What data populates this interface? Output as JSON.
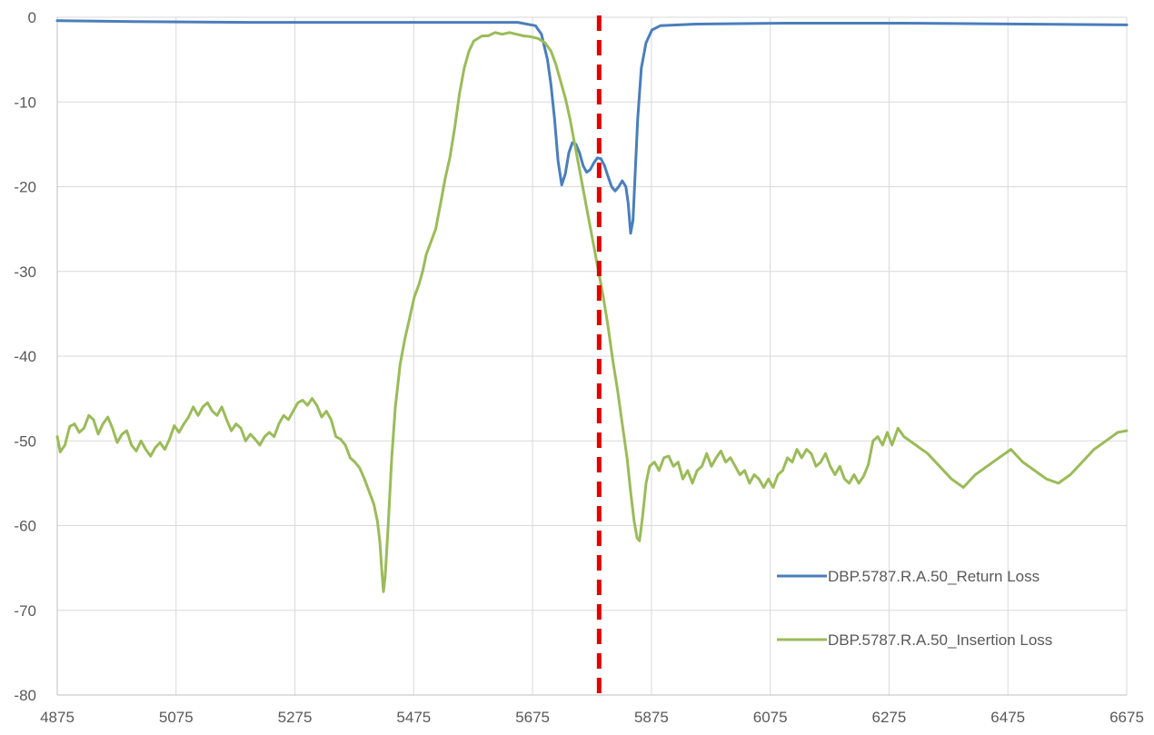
{
  "chart_data": {
    "type": "line",
    "title": "",
    "xlabel": "",
    "ylabel": "",
    "xlim": [
      4875,
      6675
    ],
    "ylim": [
      -80,
      0
    ],
    "x_ticks": [
      4875,
      5075,
      5275,
      5475,
      5675,
      5875,
      6075,
      6275,
      6475,
      6675
    ],
    "y_ticks": [
      0,
      -10,
      -20,
      -30,
      -40,
      -50,
      -60,
      -70,
      -80
    ],
    "grid": true,
    "legend_position": "bottom-right",
    "center_marker": {
      "x": 5787,
      "color": "#e00000",
      "style": "dashed"
    },
    "series": [
      {
        "name": "DBP.5787.R.A.50_Return Loss",
        "color": "#4a7ebb",
        "points": [
          [
            4875,
            -0.4
          ],
          [
            5000,
            -0.5
          ],
          [
            5200,
            -0.6
          ],
          [
            5400,
            -0.6
          ],
          [
            5550,
            -0.6
          ],
          [
            5650,
            -0.6
          ],
          [
            5680,
            -1.0
          ],
          [
            5690,
            -2.0
          ],
          [
            5700,
            -5.0
          ],
          [
            5706,
            -8.0
          ],
          [
            5712,
            -12.0
          ],
          [
            5718,
            -17.0
          ],
          [
            5724,
            -19.8
          ],
          [
            5730,
            -18.5
          ],
          [
            5736,
            -16.0
          ],
          [
            5742,
            -14.8
          ],
          [
            5748,
            -15.0
          ],
          [
            5754,
            -16.0
          ],
          [
            5760,
            -17.5
          ],
          [
            5766,
            -18.3
          ],
          [
            5772,
            -18.0
          ],
          [
            5778,
            -17.2
          ],
          [
            5784,
            -16.6
          ],
          [
            5790,
            -16.7
          ],
          [
            5796,
            -17.5
          ],
          [
            5802,
            -18.8
          ],
          [
            5808,
            -20.0
          ],
          [
            5814,
            -20.5
          ],
          [
            5820,
            -20.0
          ],
          [
            5826,
            -19.3
          ],
          [
            5832,
            -20.0
          ],
          [
            5836,
            -22.0
          ],
          [
            5840,
            -25.5
          ],
          [
            5844,
            -24.0
          ],
          [
            5848,
            -18.0
          ],
          [
            5852,
            -12.0
          ],
          [
            5858,
            -6.0
          ],
          [
            5866,
            -3.0
          ],
          [
            5876,
            -1.5
          ],
          [
            5890,
            -1.0
          ],
          [
            5950,
            -0.8
          ],
          [
            6100,
            -0.7
          ],
          [
            6300,
            -0.7
          ],
          [
            6500,
            -0.8
          ],
          [
            6675,
            -0.9
          ]
        ]
      },
      {
        "name": "DBP.5787.R.A.50_Insertion Loss",
        "color": "#9bbb59",
        "points": [
          [
            4875,
            -49.5
          ],
          [
            4880,
            -51.3
          ],
          [
            4888,
            -50.5
          ],
          [
            4896,
            -48.3
          ],
          [
            4904,
            -48.0
          ],
          [
            4912,
            -49.0
          ],
          [
            4920,
            -48.5
          ],
          [
            4928,
            -47.0
          ],
          [
            4936,
            -47.5
          ],
          [
            4944,
            -49.2
          ],
          [
            4952,
            -48.0
          ],
          [
            4960,
            -47.2
          ],
          [
            4968,
            -48.5
          ],
          [
            4976,
            -50.2
          ],
          [
            4984,
            -49.2
          ],
          [
            4992,
            -48.8
          ],
          [
            5000,
            -50.5
          ],
          [
            5008,
            -51.2
          ],
          [
            5016,
            -50.0
          ],
          [
            5024,
            -51.0
          ],
          [
            5032,
            -51.8
          ],
          [
            5040,
            -50.8
          ],
          [
            5048,
            -50.2
          ],
          [
            5056,
            -51.0
          ],
          [
            5064,
            -49.8
          ],
          [
            5072,
            -48.2
          ],
          [
            5080,
            -49.0
          ],
          [
            5088,
            -48.0
          ],
          [
            5096,
            -47.2
          ],
          [
            5104,
            -46.0
          ],
          [
            5112,
            -47.0
          ],
          [
            5120,
            -46.0
          ],
          [
            5128,
            -45.5
          ],
          [
            5136,
            -46.5
          ],
          [
            5144,
            -47.0
          ],
          [
            5152,
            -46.0
          ],
          [
            5160,
            -47.5
          ],
          [
            5168,
            -48.8
          ],
          [
            5176,
            -48.0
          ],
          [
            5184,
            -48.5
          ],
          [
            5192,
            -50.0
          ],
          [
            5200,
            -49.2
          ],
          [
            5208,
            -49.8
          ],
          [
            5216,
            -50.5
          ],
          [
            5224,
            -49.5
          ],
          [
            5232,
            -49.0
          ],
          [
            5240,
            -49.5
          ],
          [
            5248,
            -48.0
          ],
          [
            5256,
            -47.0
          ],
          [
            5264,
            -47.5
          ],
          [
            5272,
            -46.5
          ],
          [
            5280,
            -45.5
          ],
          [
            5288,
            -45.2
          ],
          [
            5296,
            -45.8
          ],
          [
            5304,
            -45.0
          ],
          [
            5312,
            -45.8
          ],
          [
            5320,
            -47.2
          ],
          [
            5328,
            -46.5
          ],
          [
            5336,
            -47.5
          ],
          [
            5344,
            -49.5
          ],
          [
            5352,
            -49.8
          ],
          [
            5360,
            -50.5
          ],
          [
            5368,
            -52.0
          ],
          [
            5376,
            -52.5
          ],
          [
            5384,
            -53.2
          ],
          [
            5392,
            -54.5
          ],
          [
            5400,
            -56.0
          ],
          [
            5408,
            -57.5
          ],
          [
            5414,
            -59.5
          ],
          [
            5418,
            -62.0
          ],
          [
            5421,
            -65.0
          ],
          [
            5424,
            -67.8
          ],
          [
            5427,
            -66.0
          ],
          [
            5432,
            -60.0
          ],
          [
            5438,
            -52.0
          ],
          [
            5444,
            -46.0
          ],
          [
            5452,
            -41.0
          ],
          [
            5460,
            -38.0
          ],
          [
            5468,
            -35.5
          ],
          [
            5476,
            -33.0
          ],
          [
            5484,
            -31.5
          ],
          [
            5490,
            -30.0
          ],
          [
            5496,
            -28.0
          ],
          [
            5504,
            -26.5
          ],
          [
            5512,
            -25.0
          ],
          [
            5520,
            -22.0
          ],
          [
            5528,
            -19.0
          ],
          [
            5536,
            -16.5
          ],
          [
            5544,
            -13.0
          ],
          [
            5552,
            -9.0
          ],
          [
            5560,
            -6.0
          ],
          [
            5568,
            -4.0
          ],
          [
            5576,
            -2.8
          ],
          [
            5590,
            -2.2
          ],
          [
            5600,
            -2.2
          ],
          [
            5612,
            -1.8
          ],
          [
            5624,
            -2.0
          ],
          [
            5636,
            -1.8
          ],
          [
            5648,
            -2.0
          ],
          [
            5660,
            -2.2
          ],
          [
            5672,
            -2.3
          ],
          [
            5684,
            -2.5
          ],
          [
            5696,
            -3.0
          ],
          [
            5706,
            -4.0
          ],
          [
            5714,
            -5.5
          ],
          [
            5722,
            -7.5
          ],
          [
            5730,
            -9.5
          ],
          [
            5738,
            -12.0
          ],
          [
            5746,
            -15.0
          ],
          [
            5754,
            -18.0
          ],
          [
            5762,
            -21.0
          ],
          [
            5770,
            -24.0
          ],
          [
            5778,
            -27.0
          ],
          [
            5786,
            -30.0
          ],
          [
            5794,
            -33.0
          ],
          [
            5802,
            -36.5
          ],
          [
            5810,
            -40.5
          ],
          [
            5818,
            -44.0
          ],
          [
            5826,
            -48.0
          ],
          [
            5834,
            -52.0
          ],
          [
            5840,
            -56.0
          ],
          [
            5846,
            -59.5
          ],
          [
            5851,
            -61.5
          ],
          [
            5855,
            -61.8
          ],
          [
            5860,
            -59.0
          ],
          [
            5866,
            -55.0
          ],
          [
            5872,
            -53.0
          ],
          [
            5880,
            -52.5
          ],
          [
            5888,
            -53.5
          ],
          [
            5896,
            -52.0
          ],
          [
            5904,
            -51.8
          ],
          [
            5912,
            -53.0
          ],
          [
            5920,
            -52.5
          ],
          [
            5928,
            -54.5
          ],
          [
            5936,
            -53.5
          ],
          [
            5944,
            -55.0
          ],
          [
            5952,
            -53.5
          ],
          [
            5960,
            -53.0
          ],
          [
            5968,
            -51.5
          ],
          [
            5976,
            -53.0
          ],
          [
            5984,
            -52.0
          ],
          [
            5992,
            -51.2
          ],
          [
            6000,
            -52.5
          ],
          [
            6008,
            -52.0
          ],
          [
            6016,
            -53.0
          ],
          [
            6024,
            -54.0
          ],
          [
            6032,
            -53.5
          ],
          [
            6040,
            -55.0
          ],
          [
            6048,
            -54.0
          ],
          [
            6056,
            -54.5
          ],
          [
            6064,
            -55.5
          ],
          [
            6072,
            -54.5
          ],
          [
            6080,
            -55.5
          ],
          [
            6088,
            -54.0
          ],
          [
            6096,
            -53.5
          ],
          [
            6104,
            -52.0
          ],
          [
            6112,
            -52.5
          ],
          [
            6120,
            -51.0
          ],
          [
            6128,
            -52.0
          ],
          [
            6136,
            -51.0
          ],
          [
            6144,
            -51.5
          ],
          [
            6152,
            -53.0
          ],
          [
            6160,
            -52.5
          ],
          [
            6168,
            -51.5
          ],
          [
            6176,
            -53.0
          ],
          [
            6184,
            -54.0
          ],
          [
            6192,
            -53.0
          ],
          [
            6200,
            -54.5
          ],
          [
            6208,
            -55.0
          ],
          [
            6216,
            -54.0
          ],
          [
            6224,
            -55.0
          ],
          [
            6232,
            -54.2
          ],
          [
            6240,
            -52.8
          ],
          [
            6248,
            -50.0
          ],
          [
            6256,
            -49.5
          ],
          [
            6264,
            -50.5
          ],
          [
            6272,
            -49.0
          ],
          [
            6280,
            -50.5
          ],
          [
            6290,
            -48.5
          ],
          [
            6300,
            -49.5
          ],
          [
            6320,
            -50.5
          ],
          [
            6340,
            -51.5
          ],
          [
            6360,
            -53.0
          ],
          [
            6380,
            -54.5
          ],
          [
            6400,
            -55.5
          ],
          [
            6420,
            -54.0
          ],
          [
            6440,
            -53.0
          ],
          [
            6460,
            -52.0
          ],
          [
            6480,
            -51.0
          ],
          [
            6500,
            -52.5
          ],
          [
            6520,
            -53.5
          ],
          [
            6540,
            -54.5
          ],
          [
            6560,
            -55.0
          ],
          [
            6580,
            -54.0
          ],
          [
            6600,
            -52.5
          ],
          [
            6620,
            -51.0
          ],
          [
            6640,
            -50.0
          ],
          [
            6660,
            -49.0
          ],
          [
            6675,
            -48.8
          ]
        ]
      }
    ]
  }
}
